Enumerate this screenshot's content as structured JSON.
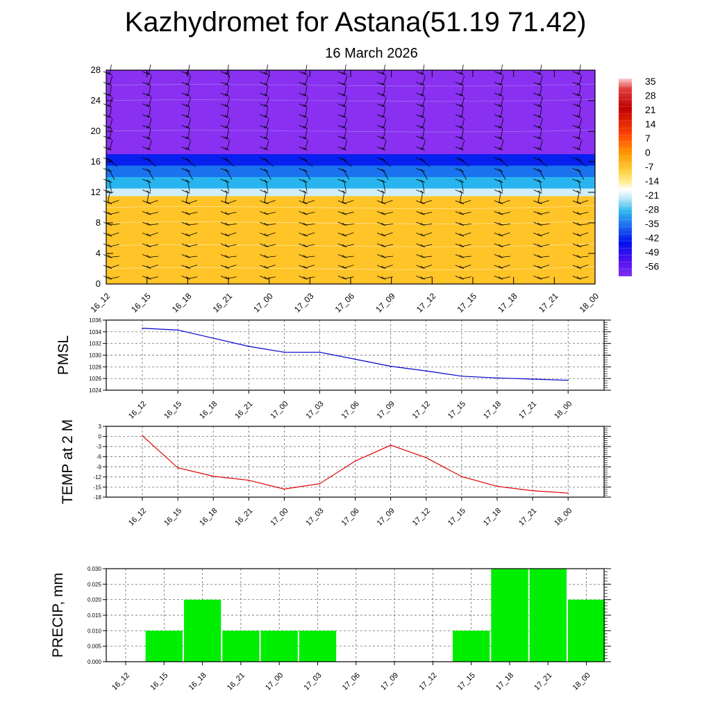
{
  "title": "Kazhydromet for Astana(51.19 71.42)",
  "subtitle": "16 March 2026",
  "chart_data": [
    {
      "type": "heatmap",
      "name": "temperature-wind-cross-section",
      "x": [
        "16_12",
        "16_15",
        "16_18",
        "16_21",
        "17_00",
        "17_03",
        "17_06",
        "17_09",
        "17_12",
        "17_15",
        "17_18",
        "17_21",
        "18_00"
      ],
      "yticks": [
        0,
        4,
        8,
        12,
        16,
        20,
        24,
        28
      ],
      "ylim": [
        0,
        28
      ],
      "bands": [
        {
          "from": 0,
          "to": 11.5,
          "value": 2
        },
        {
          "from": 11.5,
          "to": 12.5,
          "value": -16
        },
        {
          "from": 12.5,
          "to": 14,
          "value": -24
        },
        {
          "from": 14,
          "to": 15.5,
          "value": -34
        },
        {
          "from": 15.5,
          "to": 17,
          "value": -48
        },
        {
          "from": 17,
          "to": 28,
          "value": -60
        }
      ],
      "colorbar": {
        "labels": [
          "35",
          "28",
          "21",
          "14",
          "7",
          "0",
          "-7",
          "-14",
          "-21",
          "-28",
          "-35",
          "-42",
          "-49",
          "-56"
        ],
        "range": [
          -60,
          40
        ]
      },
      "wind_barbs": true
    },
    {
      "type": "line",
      "ylabel": "PMSL",
      "categories": [
        "16_12",
        "16_15",
        "16_18",
        "16_21",
        "17_00",
        "17_03",
        "17_06",
        "17_09",
        "17_12",
        "17_15",
        "17_18",
        "17_21",
        "18_00"
      ],
      "values": [
        1034.6,
        1034.3,
        1032.9,
        1031.5,
        1030.5,
        1030.5,
        1029.3,
        1028.1,
        1027.3,
        1026.4,
        1026.1,
        1025.9,
        1025.7
      ],
      "ylim": [
        1024,
        1036
      ],
      "yticks": [
        1024,
        1026,
        1028,
        1030,
        1032,
        1034,
        1036
      ],
      "color": "#0000cc",
      "grid": true
    },
    {
      "type": "line",
      "ylabel": "TEMP at 2 M",
      "categories": [
        "16_12",
        "16_15",
        "16_18",
        "16_21",
        "17_00",
        "17_03",
        "17_06",
        "17_09",
        "17_12",
        "17_15",
        "17_18",
        "17_21",
        "18_00"
      ],
      "values": [
        0.2,
        -9.3,
        -11.8,
        -13,
        -15.6,
        -14,
        -7.3,
        -2.6,
        -6.3,
        -11.9,
        -14.8,
        -16.1,
        -16.8
      ],
      "ylim": [
        -18,
        3
      ],
      "yticks": [
        -18,
        -15,
        -12,
        -9,
        -6,
        -3,
        0,
        3
      ],
      "color": "#e00000",
      "grid": true
    },
    {
      "type": "bar",
      "ylabel": "PRECIP, mm",
      "categories": [
        "16_12",
        "16_15",
        "16_18",
        "16_21",
        "17_00",
        "17_03",
        "17_06",
        "17_09",
        "17_12",
        "17_15",
        "17_18",
        "17_21",
        "18_00"
      ],
      "values": [
        0,
        0.01,
        0.02,
        0.01,
        0.01,
        0.01,
        0,
        0,
        0,
        0.01,
        0.03,
        0.03,
        0.02
      ],
      "ylim": [
        0,
        0.03
      ],
      "yticks": [
        "0.000",
        "0.005",
        "0.010",
        "0.015",
        "0.020",
        "0.025",
        "0.030"
      ],
      "color": "#00ee00",
      "grid": true
    }
  ]
}
